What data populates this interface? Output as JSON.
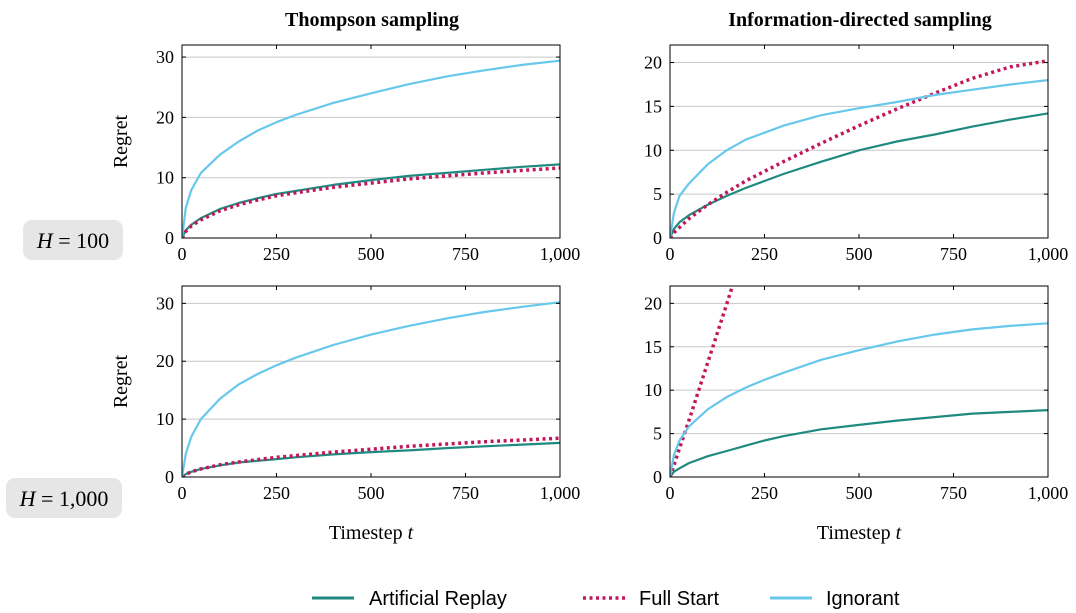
{
  "figure": {
    "col_titles": [
      "Thompson sampling",
      "Information-directed sampling"
    ],
    "row_labels": [
      {
        "var": "H",
        "eq": " = ",
        "value": "100"
      },
      {
        "var": "H",
        "eq": " = ",
        "value": "1,000"
      }
    ],
    "colors": {
      "Artificial Replay": "#1f8a80",
      "Full Start": "#c2185b",
      "Ignorant": "#67c8ec",
      "grid": "#c8c8c8",
      "rowlabel_bg": "#e6e6e6"
    }
  },
  "legend": [
    {
      "name": "Artificial Replay",
      "style": "solid"
    },
    {
      "name": "Full Start",
      "style": "dotted"
    },
    {
      "name": "Ignorant",
      "style": "solid"
    }
  ],
  "chart_data": [
    {
      "type": "line",
      "title": "Thompson sampling",
      "ylabel": "Regret",
      "xlabel": "",
      "xlim": [
        0,
        1000
      ],
      "ylim": [
        0,
        32
      ],
      "xticks": [
        0,
        250,
        500,
        750,
        1000
      ],
      "xtick_labels": [
        "0",
        "250",
        "500",
        "750",
        "1,000"
      ],
      "yticks": [
        0,
        10,
        20,
        30
      ],
      "ytick_labels": [
        "0",
        "10",
        "20",
        "30"
      ],
      "grid": true,
      "x": [
        0,
        10,
        25,
        50,
        100,
        150,
        200,
        250,
        300,
        400,
        500,
        600,
        700,
        800,
        900,
        1000
      ],
      "series": [
        {
          "name": "Artificial Replay",
          "values": [
            0.0,
            1.3,
            2.2,
            3.3,
            4.8,
            5.8,
            6.6,
            7.3,
            7.8,
            8.8,
            9.6,
            10.3,
            10.8,
            11.3,
            11.8,
            12.2
          ]
        },
        {
          "name": "Full Start",
          "values": [
            0.0,
            1.1,
            2.0,
            3.0,
            4.5,
            5.5,
            6.3,
            7.0,
            7.5,
            8.4,
            9.1,
            9.8,
            10.3,
            10.8,
            11.2,
            11.6
          ]
        },
        {
          "name": "Ignorant",
          "values": [
            0.0,
            5.0,
            8.0,
            10.8,
            13.8,
            16.0,
            17.8,
            19.2,
            20.4,
            22.4,
            24.0,
            25.5,
            26.8,
            27.8,
            28.7,
            29.4
          ]
        }
      ]
    },
    {
      "type": "line",
      "title": "Information-directed sampling",
      "ylabel": "",
      "xlabel": "",
      "xlim": [
        0,
        1000
      ],
      "ylim": [
        0,
        22
      ],
      "xticks": [
        0,
        250,
        500,
        750,
        1000
      ],
      "xtick_labels": [
        "0",
        "250",
        "500",
        "750",
        "1,000"
      ],
      "yticks": [
        0,
        5,
        10,
        15,
        20
      ],
      "ytick_labels": [
        "0",
        "5",
        "10",
        "15",
        "20"
      ],
      "grid": true,
      "x": [
        0,
        10,
        25,
        50,
        100,
        150,
        200,
        250,
        300,
        400,
        500,
        600,
        700,
        800,
        900,
        1000
      ],
      "series": [
        {
          "name": "Artificial Replay",
          "values": [
            0.0,
            1.0,
            1.8,
            2.6,
            3.8,
            4.8,
            5.7,
            6.5,
            7.3,
            8.7,
            10.0,
            11.0,
            11.8,
            12.7,
            13.5,
            14.2
          ]
        },
        {
          "name": "Full Start",
          "values": [
            0.0,
            0.6,
            1.2,
            2.2,
            3.8,
            5.2,
            6.5,
            7.6,
            8.7,
            10.8,
            12.8,
            14.7,
            16.5,
            18.2,
            19.5,
            20.2
          ]
        },
        {
          "name": "Ignorant",
          "values": [
            0.0,
            2.8,
            4.8,
            6.2,
            8.4,
            10.0,
            11.2,
            12.0,
            12.8,
            14.0,
            14.8,
            15.5,
            16.3,
            16.9,
            17.5,
            18.0
          ]
        }
      ]
    },
    {
      "type": "line",
      "title": "",
      "ylabel": "Regret",
      "xlabel": "Timestep t",
      "xlim": [
        0,
        1000
      ],
      "ylim": [
        0,
        33
      ],
      "xticks": [
        0,
        250,
        500,
        750,
        1000
      ],
      "xtick_labels": [
        "0",
        "250",
        "500",
        "750",
        "1,000"
      ],
      "yticks": [
        0,
        10,
        20,
        30
      ],
      "ytick_labels": [
        "0",
        "10",
        "20",
        "30"
      ],
      "grid": true,
      "x": [
        0,
        10,
        25,
        50,
        100,
        150,
        200,
        250,
        300,
        400,
        500,
        600,
        700,
        800,
        900,
        1000
      ],
      "series": [
        {
          "name": "Artificial Replay",
          "values": [
            0.0,
            0.5,
            0.9,
            1.4,
            2.0,
            2.5,
            2.8,
            3.1,
            3.4,
            3.9,
            4.3,
            4.6,
            5.0,
            5.3,
            5.6,
            5.9
          ]
        },
        {
          "name": "Full Start",
          "values": [
            0.0,
            0.5,
            0.9,
            1.4,
            2.1,
            2.6,
            3.0,
            3.4,
            3.7,
            4.3,
            4.8,
            5.3,
            5.7,
            6.1,
            6.4,
            6.7
          ]
        },
        {
          "name": "Ignorant",
          "values": [
            0.0,
            4.0,
            7.0,
            10.0,
            13.5,
            16.0,
            17.8,
            19.3,
            20.6,
            22.8,
            24.6,
            26.1,
            27.4,
            28.5,
            29.4,
            30.2
          ]
        }
      ]
    },
    {
      "type": "line",
      "title": "",
      "ylabel": "",
      "xlabel": "Timestep t",
      "xlim": [
        0,
        1000
      ],
      "ylim": [
        0,
        22
      ],
      "xticks": [
        0,
        250,
        500,
        750,
        1000
      ],
      "xtick_labels": [
        "0",
        "250",
        "500",
        "750",
        "1,000"
      ],
      "yticks": [
        0,
        5,
        10,
        15,
        20
      ],
      "ytick_labels": [
        "0",
        "5",
        "10",
        "15",
        "20"
      ],
      "grid": true,
      "x": [
        0,
        10,
        25,
        50,
        100,
        150,
        200,
        250,
        300,
        400,
        500,
        600,
        700,
        800,
        900,
        1000
      ],
      "series": [
        {
          "name": "Artificial Replay",
          "values": [
            0.0,
            0.6,
            1.0,
            1.6,
            2.4,
            3.0,
            3.6,
            4.2,
            4.7,
            5.5,
            6.0,
            6.5,
            6.9,
            7.3,
            7.5,
            7.7
          ]
        },
        {
          "name": "Full Start",
          "x": [
            0,
            10,
            25,
            50,
            100,
            150,
            165
          ],
          "values": [
            0.0,
            1.3,
            3.3,
            6.5,
            13.2,
            19.9,
            22.0
          ]
        },
        {
          "name": "Ignorant",
          "values": [
            0.0,
            2.5,
            4.2,
            5.8,
            7.8,
            9.2,
            10.3,
            11.2,
            12.0,
            13.5,
            14.6,
            15.6,
            16.4,
            17.0,
            17.4,
            17.7
          ]
        }
      ]
    }
  ]
}
